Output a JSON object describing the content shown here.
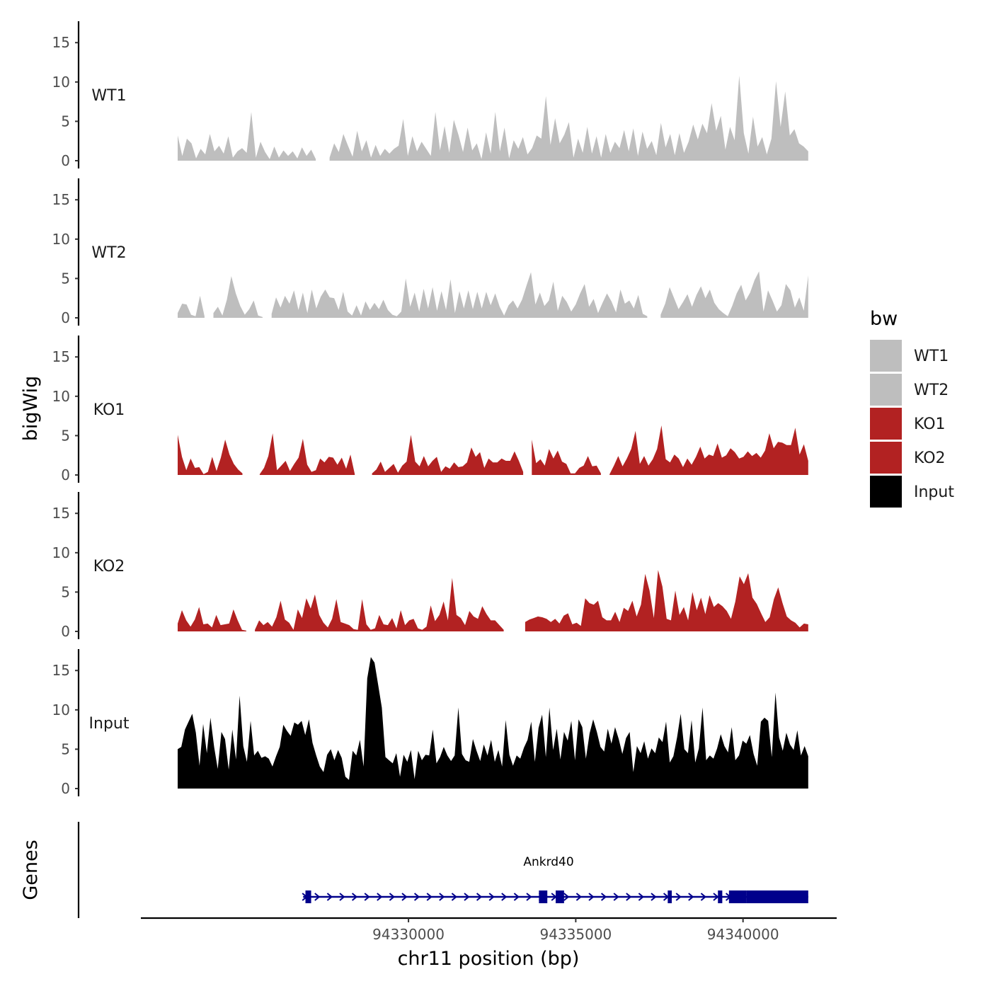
{
  "chart_data": {
    "type": "area",
    "title": "",
    "ylabel": "bigWig",
    "genes_label": "Genes",
    "xlabel": "chr11 position (bp)",
    "x_range": [
      94323100,
      94341950
    ],
    "x_axis_limits": [
      94322000,
      94342800
    ],
    "x_ticks": [
      94330000,
      94335000,
      94340000
    ],
    "x_tick_labels": [
      "94330000",
      "94335000",
      "94340000"
    ],
    "ylim": [
      0,
      17
    ],
    "y_ticks": [
      0,
      5,
      10,
      15
    ],
    "y_tick_labels": [
      "0",
      "5",
      "10",
      "15"
    ],
    "legend": {
      "title": "bw",
      "position": "right",
      "entries": [
        {
          "label": "WT1",
          "color": "#bebebe"
        },
        {
          "label": "WT2",
          "color": "#bebebe"
        },
        {
          "label": "KO1",
          "color": "#b22222"
        },
        {
          "label": "KO2",
          "color": "#b22222"
        },
        {
          "label": "Input",
          "color": "#000000"
        }
      ]
    },
    "series": [
      {
        "name": "WT1",
        "color": "#bebebe",
        "values": [
          3.2,
          0.6,
          2.8,
          2.2,
          0.3,
          1.5,
          0.8,
          3.4,
          1.2,
          1.9,
          0.9,
          3.1,
          0.4,
          1.2,
          1.6,
          1.0,
          6.2,
          0.4,
          2.4,
          1.1,
          0.2,
          1.8,
          0.4,
          1.3,
          0.6,
          1.2,
          0.3,
          1.7,
          0.6,
          1.4,
          0.2,
          null,
          null,
          0.4,
          2.2,
          1.1,
          3.4,
          1.9,
          0.5,
          3.8,
          1.2,
          2.6,
          0.4,
          2.0,
          0.6,
          1.5,
          0.9,
          1.5,
          1.9,
          5.3,
          0.6,
          3.1,
          1.2,
          2.4,
          1.5,
          0.6,
          6.2,
          1.3,
          4.4,
          1.0,
          5.2,
          3.3,
          1.1,
          4.2,
          1.3,
          2.2,
          0.2,
          3.6,
          0.9,
          6.2,
          1.2,
          4.2,
          0.3,
          2.6,
          1.5,
          3.0,
          0.8,
          1.6,
          3.2,
          2.8,
          8.2,
          2.0,
          5.4,
          2.2,
          3.3,
          4.9,
          0.4,
          2.8,
          1.0,
          4.3,
          0.9,
          3.1,
          0.4,
          3.4,
          1.0,
          2.4,
          1.6,
          3.9,
          1.2,
          4.1,
          0.6,
          3.7,
          1.5,
          2.5,
          0.7,
          4.8,
          1.7,
          3.4,
          0.7,
          3.5,
          1.0,
          2.4,
          4.6,
          2.7,
          4.7,
          3.5,
          7.3,
          3.8,
          5.7,
          1.4,
          4.3,
          2.6,
          10.8,
          3.5,
          0.9,
          5.6,
          1.8,
          3.0,
          0.8,
          2.8,
          10.1,
          4.3,
          8.8,
          3.2,
          4.0,
          2.2,
          1.8,
          1.2
        ]
      },
      {
        "name": "WT2",
        "color": "#bebebe",
        "values": [
          0.6,
          1.8,
          1.7,
          0.4,
          0.2,
          2.8,
          0.2,
          null,
          0.6,
          1.4,
          0.3,
          2.3,
          5.3,
          3.1,
          1.5,
          0.4,
          1.1,
          2.2,
          0.3,
          0.1,
          null,
          0.5,
          2.6,
          1.3,
          2.8,
          1.8,
          3.5,
          1.0,
          3.2,
          0.6,
          3.6,
          1.2,
          2.7,
          3.6,
          2.6,
          2.5,
          1.0,
          3.3,
          0.8,
          0.3,
          1.6,
          0.3,
          2.1,
          1.0,
          1.9,
          1.1,
          2.3,
          1.0,
          0.4,
          0.2,
          0.8,
          5.0,
          1.4,
          3.2,
          0.8,
          3.7,
          1.2,
          3.9,
          0.9,
          3.4,
          1.0,
          4.9,
          0.6,
          3.4,
          1.2,
          3.5,
          1.1,
          3.3,
          1.2,
          3.3,
          1.6,
          3.1,
          1.4,
          0.3,
          1.6,
          2.2,
          1.2,
          2.3,
          4.1,
          5.8,
          1.7,
          3.2,
          1.5,
          2.2,
          4.6,
          0.9,
          2.8,
          2.0,
          0.8,
          1.7,
          3.1,
          4.3,
          1.4,
          2.4,
          0.6,
          1.9,
          3.1,
          2.1,
          0.7,
          3.6,
          1.8,
          2.2,
          1.2,
          2.9,
          0.5,
          0.2,
          null,
          null,
          0.4,
          1.8,
          3.9,
          2.5,
          1.1,
          2.0,
          3.0,
          1.4,
          2.9,
          4.0,
          2.5,
          3.6,
          1.9,
          1.1,
          0.6,
          0.2,
          1.5,
          3.1,
          4.2,
          2.2,
          3.2,
          4.8,
          5.9,
          0.8,
          3.5,
          2.2,
          0.8,
          1.6,
          4.3,
          3.5,
          1.3,
          2.6,
          0.9,
          5.4
        ]
      },
      {
        "name": "KO1",
        "color": "#b22222",
        "values": [
          5.1,
          2.3,
          0.6,
          2.1,
          0.9,
          1.0,
          0.1,
          0.4,
          2.3,
          0.5,
          2.2,
          4.5,
          2.6,
          1.4,
          0.7,
          0.2,
          null,
          null,
          null,
          0.1,
          0.9,
          2.4,
          5.3,
          0.6,
          1.2,
          1.8,
          0.5,
          1.4,
          2.2,
          4.6,
          1.3,
          0.4,
          0.6,
          2.1,
          1.6,
          2.3,
          2.2,
          1.3,
          2.2,
          0.8,
          2.6,
          0.1,
          null,
          null,
          null,
          0.2,
          0.7,
          1.7,
          0.4,
          0.9,
          1.4,
          0.3,
          1.2,
          1.7,
          5.1,
          1.7,
          1.1,
          2.4,
          1.1,
          1.8,
          2.3,
          0.4,
          1.1,
          0.8,
          1.6,
          1.0,
          1.1,
          1.6,
          3.5,
          2.3,
          2.9,
          0.9,
          2.1,
          1.6,
          1.6,
          2.1,
          1.8,
          1.8,
          3.0,
          1.8,
          0.4,
          null,
          4.5,
          1.5,
          2.0,
          1.2,
          3.3,
          2.1,
          3.1,
          1.7,
          1.4,
          0.2,
          0.2,
          0.9,
          1.2,
          2.4,
          1.1,
          1.2,
          0.2,
          null,
          0.1,
          1.2,
          2.4,
          1.1,
          2.1,
          3.3,
          5.6,
          1.4,
          2.4,
          1.2,
          2.0,
          3.3,
          6.3,
          2.0,
          1.6,
          2.6,
          2.1,
          1.0,
          2.1,
          1.3,
          2.3,
          3.6,
          2.1,
          2.6,
          2.4,
          4.0,
          2.2,
          2.5,
          3.4,
          2.9,
          2.1,
          2.3,
          3.0,
          2.4,
          2.8,
          2.2,
          3.1,
          5.3,
          3.4,
          4.2,
          4.1,
          3.8,
          3.8,
          6.0,
          2.6,
          3.9,
          1.8
        ]
      },
      {
        "name": "KO2",
        "color": "#b22222",
        "values": [
          1.0,
          2.7,
          1.4,
          0.6,
          1.5,
          3.1,
          0.9,
          1.0,
          0.5,
          2.1,
          0.8,
          0.9,
          1.0,
          2.8,
          1.4,
          0.2,
          0.1,
          null,
          0.2,
          1.4,
          0.8,
          1.2,
          0.6,
          1.8,
          3.9,
          1.5,
          1.1,
          0.2,
          2.8,
          1.7,
          4.2,
          2.9,
          4.7,
          2.1,
          1.1,
          0.5,
          1.6,
          4.1,
          1.2,
          1.0,
          0.8,
          0.3,
          0.2,
          4.1,
          0.9,
          0.2,
          0.4,
          2.1,
          0.9,
          0.8,
          1.7,
          0.4,
          2.7,
          0.8,
          1.4,
          1.6,
          0.4,
          0.2,
          0.6,
          3.3,
          1.3,
          2.1,
          3.8,
          1.4,
          6.8,
          2.1,
          1.7,
          0.8,
          2.6,
          1.9,
          1.6,
          3.2,
          2.2,
          1.4,
          1.4,
          0.8,
          0.2,
          null,
          null,
          null,
          null,
          1.2,
          1.5,
          1.7,
          1.9,
          1.8,
          1.6,
          1.2,
          1.6,
          1.0,
          2.0,
          2.3,
          0.9,
          1.1,
          0.7,
          4.2,
          3.6,
          3.4,
          3.9,
          1.8,
          1.4,
          1.4,
          2.5,
          1.2,
          3.0,
          2.6,
          3.9,
          1.9,
          3.4,
          7.3,
          5.2,
          1.7,
          7.8,
          5.7,
          1.6,
          1.4,
          5.2,
          2.1,
          3.1,
          1.4,
          5.0,
          2.7,
          4.3,
          2.2,
          4.6,
          3.1,
          3.6,
          3.2,
          2.6,
          1.6,
          3.8,
          7.0,
          6.0,
          7.4,
          4.3,
          3.5,
          2.3,
          1.2,
          1.8,
          4.1,
          5.6,
          3.6,
          1.9,
          1.4,
          1.1,
          0.5,
          1.0,
          0.9
        ]
      },
      {
        "name": "Input",
        "color": "#000000",
        "values": [
          5.0,
          5.3,
          7.5,
          8.5,
          9.5,
          7.1,
          2.9,
          8.2,
          4.5,
          9.0,
          5.3,
          2.5,
          7.2,
          6.3,
          2.4,
          7.5,
          3.7,
          11.8,
          5.4,
          3.4,
          8.6,
          4.2,
          4.8,
          3.9,
          4.1,
          3.8,
          2.8,
          4.1,
          5.3,
          8.1,
          7.3,
          6.7,
          8.4,
          8.1,
          8.6,
          6.8,
          8.8,
          5.8,
          4.2,
          2.8,
          2.1,
          4.3,
          5.0,
          3.6,
          4.9,
          3.9,
          1.5,
          1.1,
          4.8,
          4.2,
          6.2,
          2.8,
          14.0,
          16.7,
          16.0,
          13.2,
          10.3,
          4.0,
          3.6,
          3.2,
          4.5,
          1.5,
          4.3,
          3.4,
          4.9,
          1.2,
          4.8,
          3.6,
          4.3,
          4.2,
          7.5,
          3.2,
          4.0,
          5.3,
          4.2,
          3.5,
          4.2,
          10.3,
          4.4,
          3.6,
          3.4,
          6.3,
          4.8,
          3.5,
          5.6,
          4.2,
          6.2,
          3.4,
          4.9,
          2.8,
          8.7,
          4.3,
          2.9,
          4.2,
          3.8,
          5.2,
          6.2,
          8.5,
          3.4,
          7.7,
          9.4,
          4.0,
          10.3,
          4.9,
          7.6,
          3.7,
          7.2,
          6.1,
          8.6,
          3.6,
          8.8,
          7.8,
          3.8,
          7.0,
          8.8,
          7.2,
          5.3,
          4.7,
          7.6,
          5.7,
          7.8,
          6.3,
          4.4,
          6.4,
          7.2,
          2.1,
          5.4,
          4.5,
          6.0,
          3.8,
          5.1,
          4.5,
          6.5,
          5.9,
          8.5,
          3.3,
          4.1,
          6.5,
          9.5,
          5.0,
          4.5,
          8.7,
          3.3,
          5.1,
          10.3,
          3.6,
          4.2,
          3.8,
          5.1,
          6.9,
          5.4,
          4.6,
          7.8,
          3.6,
          4.2,
          6.1,
          5.7,
          6.8,
          4.4,
          2.9,
          8.5,
          9.0,
          8.6,
          4.0,
          12.2,
          6.5,
          4.8,
          7.1,
          5.6,
          4.9,
          7.4,
          4.2,
          5.4,
          4.1
        ]
      }
    ],
    "genes": [
      {
        "name": "Ankrd40",
        "strand": "+",
        "start": 94326850,
        "end": 94341950,
        "exons": [
          [
            94326920,
            94327090
          ],
          [
            94333900,
            94334150
          ],
          [
            94334400,
            94334650
          ],
          [
            94337750,
            94337870
          ],
          [
            94339250,
            94339380
          ],
          [
            94339580,
            94340100
          ],
          [
            94340100,
            94341950
          ]
        ]
      }
    ]
  }
}
